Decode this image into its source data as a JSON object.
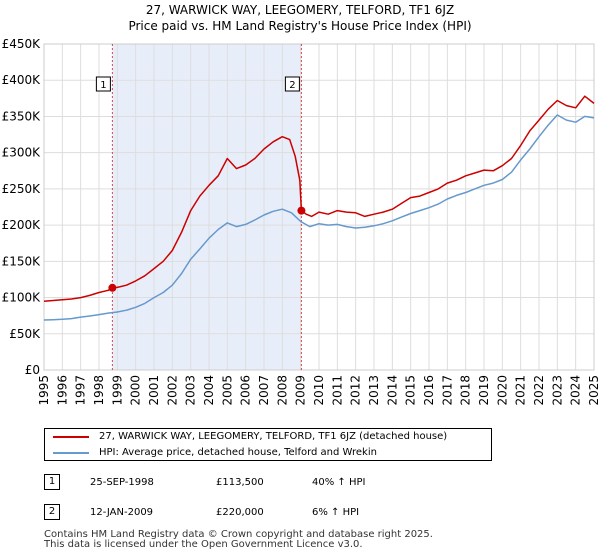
{
  "header": {
    "title_line1": "27, WARWICK WAY, LEEGOMERY, TELFORD, TF1 6JZ",
    "title_line2": "Price paid vs. HM Land Registry's House Price Index (HPI)"
  },
  "chart_data": {
    "type": "line",
    "title": "27, WARWICK WAY, LEEGOMERY, TELFORD, TF1 6JZ — Price paid vs. HM Land Registry's House Price Index (HPI)",
    "xlim": [
      1995,
      2025
    ],
    "ylim": [
      0,
      450000
    ],
    "y_ticks": [
      0,
      50000,
      100000,
      150000,
      200000,
      250000,
      300000,
      350000,
      400000,
      450000
    ],
    "y_tick_labels": [
      "£0",
      "£50K",
      "£100K",
      "£150K",
      "£200K",
      "£250K",
      "£300K",
      "£350K",
      "£400K",
      "£450K"
    ],
    "x_ticks": [
      1995,
      1996,
      1997,
      1998,
      1999,
      2000,
      2001,
      2002,
      2003,
      2004,
      2005,
      2006,
      2007,
      2008,
      2009,
      2010,
      2011,
      2012,
      2013,
      2014,
      2015,
      2016,
      2017,
      2018,
      2019,
      2020,
      2021,
      2022,
      2023,
      2024,
      2025
    ],
    "shaded_region": [
      1998.73,
      2009.04
    ],
    "grid": true,
    "colors": {
      "property": "#cc0000",
      "hpi": "#6699cc",
      "shade": "#e8eef9",
      "marker_line": "#cc0000"
    },
    "series": [
      {
        "name": "27, WARWICK WAY, LEEGOMERY, TELFORD, TF1 6JZ (detached house)",
        "x": [
          1995.0,
          1995.5,
          1996.0,
          1996.5,
          1997.0,
          1997.5,
          1998.0,
          1998.5,
          1998.73,
          1999.0,
          1999.5,
          2000.0,
          2000.5,
          2001.0,
          2001.5,
          2002.0,
          2002.5,
          2003.0,
          2003.5,
          2004.0,
          2004.5,
          2005.0,
          2005.5,
          2006.0,
          2006.5,
          2007.0,
          2007.5,
          2008.0,
          2008.4,
          2008.7,
          2008.95,
          2009.04,
          2009.3,
          2009.6,
          2010.0,
          2010.5,
          2011.0,
          2011.5,
          2012.0,
          2012.5,
          2013.0,
          2013.5,
          2014.0,
          2014.5,
          2015.0,
          2015.5,
          2016.0,
          2016.5,
          2017.0,
          2017.5,
          2018.0,
          2018.5,
          2019.0,
          2019.5,
          2020.0,
          2020.5,
          2021.0,
          2021.5,
          2022.0,
          2022.5,
          2023.0,
          2023.5,
          2024.0,
          2024.5,
          2025.0
        ],
        "values": [
          95000,
          96000,
          97000,
          98000,
          100000,
          103000,
          107000,
          110000,
          113500,
          114000,
          117000,
          123000,
          130000,
          140000,
          150000,
          165000,
          190000,
          220000,
          240000,
          255000,
          268000,
          292000,
          278000,
          283000,
          292000,
          305000,
          315000,
          322000,
          318000,
          295000,
          262000,
          220000,
          215000,
          212000,
          218000,
          215000,
          220000,
          218000,
          217000,
          212000,
          215000,
          218000,
          222000,
          230000,
          238000,
          240000,
          245000,
          250000,
          258000,
          262000,
          268000,
          272000,
          276000,
          275000,
          282000,
          292000,
          310000,
          330000,
          345000,
          360000,
          372000,
          365000,
          362000,
          378000,
          368000
        ]
      },
      {
        "name": "HPI: Average price, detached house, Telford and Wrekin",
        "x": [
          1995.0,
          1995.5,
          1996.0,
          1996.5,
          1997.0,
          1997.5,
          1998.0,
          1998.5,
          1999.0,
          1999.5,
          2000.0,
          2000.5,
          2001.0,
          2001.5,
          2002.0,
          2002.5,
          2003.0,
          2003.5,
          2004.0,
          2004.5,
          2005.0,
          2005.5,
          2006.0,
          2006.5,
          2007.0,
          2007.5,
          2008.0,
          2008.5,
          2009.0,
          2009.5,
          2010.0,
          2010.5,
          2011.0,
          2011.5,
          2012.0,
          2012.5,
          2013.0,
          2013.5,
          2014.0,
          2014.5,
          2015.0,
          2015.5,
          2016.0,
          2016.5,
          2017.0,
          2017.5,
          2018.0,
          2018.5,
          2019.0,
          2019.5,
          2020.0,
          2020.5,
          2021.0,
          2021.5,
          2022.0,
          2022.5,
          2023.0,
          2023.5,
          2024.0,
          2024.5,
          2025.0
        ],
        "values": [
          69000,
          69500,
          70000,
          71000,
          73000,
          74500,
          76500,
          78500,
          80000,
          82500,
          86500,
          92000,
          100000,
          107000,
          117000,
          133000,
          153000,
          167000,
          182000,
          194000,
          203000,
          198000,
          201000,
          207000,
          214000,
          219000,
          222000,
          217000,
          205000,
          198000,
          202000,
          200000,
          201000,
          198000,
          196000,
          197000,
          199000,
          202000,
          206000,
          211000,
          216000,
          220000,
          224000,
          229000,
          236000,
          241000,
          245000,
          250000,
          255000,
          258000,
          263000,
          273000,
          290000,
          305000,
          322000,
          338000,
          352000,
          345000,
          342000,
          350000,
          348000
        ]
      }
    ],
    "annotations": [
      {
        "label": "1",
        "x": 1998.73,
        "y": 113500
      },
      {
        "label": "2",
        "x": 2009.04,
        "y": 220000
      }
    ]
  },
  "legend": {
    "entries": [
      {
        "label": "27, WARWICK WAY, LEEGOMERY, TELFORD, TF1 6JZ (detached house)",
        "color": "#cc0000"
      },
      {
        "label": "HPI: Average price, detached house, Telford and Wrekin",
        "color": "#6699cc"
      }
    ]
  },
  "transactions": [
    {
      "num": "1",
      "date": "25-SEP-1998",
      "price": "£113,500",
      "hpi": "40% ↑ HPI"
    },
    {
      "num": "2",
      "date": "12-JAN-2009",
      "price": "£220,000",
      "hpi": "6% ↑ HPI"
    }
  ],
  "footer": {
    "line1": "Contains HM Land Registry data © Crown copyright and database right 2025.",
    "line2": "This data is licensed under the Open Government Licence v3.0."
  }
}
